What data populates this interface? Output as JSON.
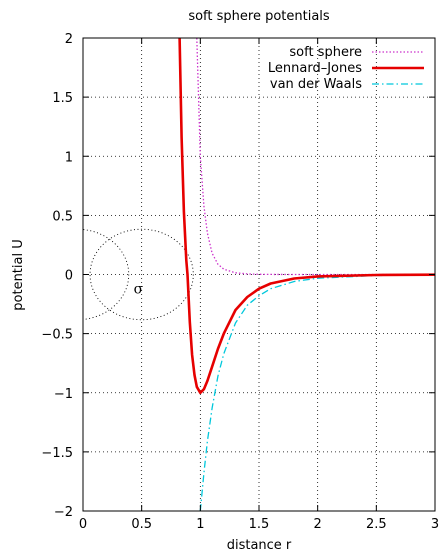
{
  "chart_data": {
    "type": "line",
    "title": "soft sphere potentials",
    "xlabel": "distance r",
    "ylabel": "potential U",
    "xlim": [
      0,
      3
    ],
    "ylim": [
      -2,
      2
    ],
    "x_ticks": [
      0,
      0.5,
      1,
      1.5,
      2,
      2.5,
      3
    ],
    "x_tick_labels": [
      "0",
      "0.5",
      "1",
      "1.5",
      "2",
      "2.5",
      "3"
    ],
    "y_ticks": [
      -2,
      -1.5,
      -1,
      -0.5,
      0,
      0.5,
      1,
      1.5,
      2
    ],
    "y_tick_labels": [
      "−2",
      "−1.5",
      "−1",
      "−0.5",
      "0",
      "0.5",
      "1",
      "1.5",
      "2"
    ],
    "grid": true,
    "legend_position": "top-right",
    "series": [
      {
        "name": "soft sphere",
        "color": "#cc33cc",
        "style": "dotted",
        "x": [
          0.97,
          1.0,
          1.03,
          1.06,
          1.1,
          1.15,
          1.2,
          1.3,
          1.4,
          1.5,
          1.6,
          1.8,
          2.0,
          2.5,
          3.0
        ],
        "y": [
          2.0,
          1.0,
          0.58,
          0.35,
          0.18,
          0.087,
          0.045,
          0.014,
          0.0049,
          0.0019,
          0.0008,
          0.0002,
          6e-05,
          1e-05,
          0.0
        ]
      },
      {
        "name": "Lennard–Jones",
        "color": "#e60000",
        "style": "solid",
        "x": [
          0.823,
          0.84,
          0.86,
          0.88,
          0.891,
          0.91,
          0.93,
          0.95,
          0.97,
          1.0,
          1.03,
          1.06,
          1.1,
          1.15,
          1.2,
          1.3,
          1.4,
          1.5,
          1.6,
          1.8,
          2.0,
          2.5,
          3.0
        ],
        "y": [
          2.0,
          1.16,
          0.53,
          0.12,
          0.0,
          -0.4,
          -0.68,
          -0.85,
          -0.95,
          -1.0,
          -0.97,
          -0.9,
          -0.78,
          -0.63,
          -0.5,
          -0.3,
          -0.19,
          -0.12,
          -0.076,
          -0.034,
          -0.016,
          -0.0041,
          -0.0014
        ]
      },
      {
        "name": "van der Waals",
        "color": "#00c8dc",
        "style": "dash-dot",
        "x": [
          1.0,
          1.03,
          1.06,
          1.1,
          1.15,
          1.2,
          1.3,
          1.4,
          1.5,
          1.6,
          1.8,
          2.0,
          2.5,
          3.0
        ],
        "y": [
          -2.0,
          -1.68,
          -1.41,
          -1.13,
          -0.86,
          -0.67,
          -0.41,
          -0.26,
          -0.18,
          -0.12,
          -0.059,
          -0.031,
          -0.0082,
          -0.0027
        ]
      }
    ],
    "annotations": [
      {
        "type": "circle",
        "center": [
          0.5,
          0
        ],
        "radius": 0.44,
        "label": "σ"
      },
      {
        "type": "circle",
        "center": [
          -0.05,
          0
        ],
        "radius": 0.44
      }
    ]
  }
}
